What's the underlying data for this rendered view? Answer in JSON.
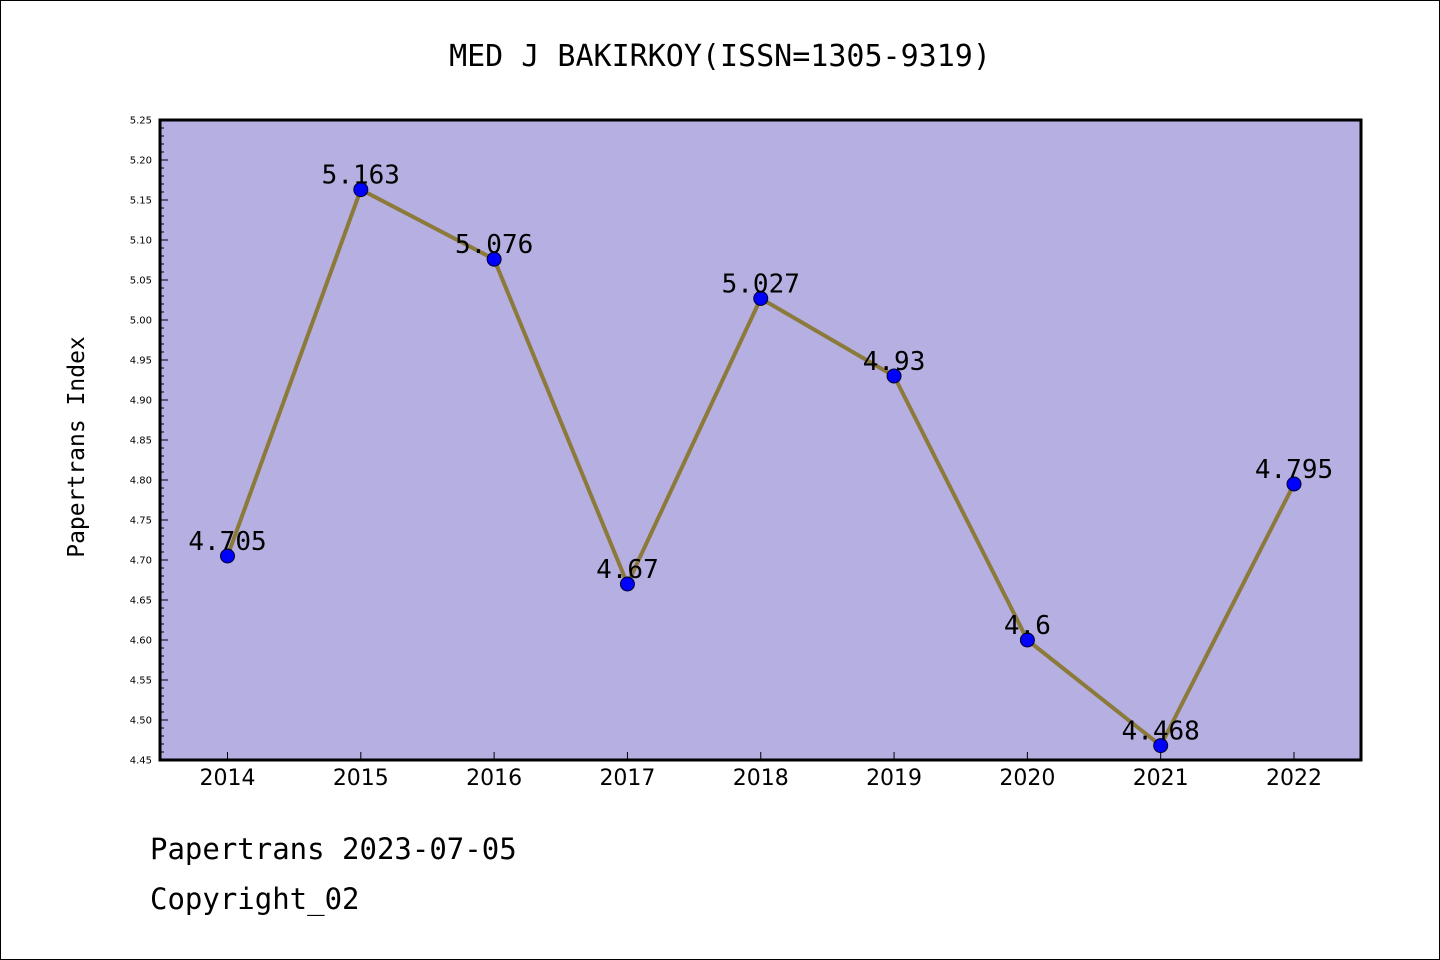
{
  "chart_data": {
    "type": "line",
    "title": "MED J BAKIRKOY(ISSN=1305-9319)",
    "xlabel": "",
    "ylabel": "Papertrans Index",
    "categories": [
      "2014",
      "2015",
      "2016",
      "2017",
      "2018",
      "2019",
      "2020",
      "2021",
      "2022"
    ],
    "values": [
      4.705,
      5.163,
      5.076,
      4.67,
      5.027,
      4.93,
      4.6,
      4.468,
      4.795
    ],
    "data_labels": [
      "4.705",
      "5.163",
      "5.076",
      "4.67",
      "5.027",
      "4.93",
      "4.6",
      "4.468",
      "4.795"
    ],
    "ylim": [
      4.45,
      5.25
    ],
    "yticks": [
      "4.45",
      "4.50",
      "4.55",
      "4.60",
      "4.65",
      "4.70",
      "4.75",
      "4.80",
      "4.85",
      "4.90",
      "4.95",
      "5.00",
      "5.05",
      "5.10",
      "5.15",
      "5.20",
      "5.25"
    ],
    "grid": false,
    "legend": "none",
    "colors": {
      "plot_bg": "#b5afe2",
      "line": "#8b7a3a",
      "marker": "#0000ff"
    }
  },
  "footer": {
    "line1": "Papertrans 2023-07-05",
    "line2": "Copyright_02"
  }
}
